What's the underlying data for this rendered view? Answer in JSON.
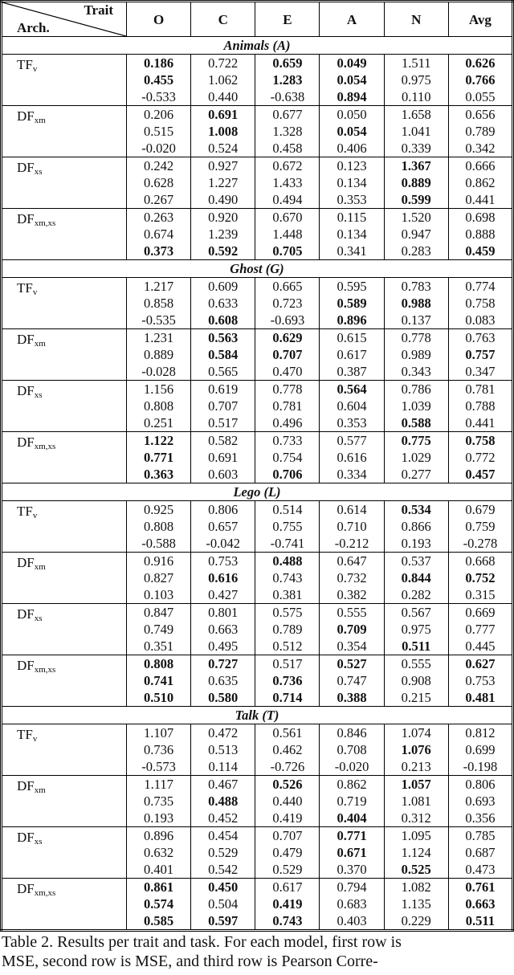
{
  "header": {
    "corner_top": "Trait",
    "corner_bottom": "Arch.",
    "columns": [
      "O",
      "C",
      "E",
      "A",
      "N",
      "Avg"
    ]
  },
  "sections": [
    {
      "title": "Animals (A)",
      "models": [
        {
          "arch": "TF",
          "sub": "v",
          "rows": [
            {
              "values": [
                "0.186",
                "0.722",
                "0.659",
                "0.049",
                "1.511",
                "0.626"
              ],
              "bold": [
                0,
                2,
                3,
                5
              ]
            },
            {
              "values": [
                "0.455",
                "1.062",
                "1.283",
                "0.054",
                "0.975",
                "0.766"
              ],
              "bold": [
                0,
                2,
                3,
                5
              ]
            },
            {
              "values": [
                "-0.533",
                "0.440",
                "-0.638",
                "0.894",
                "0.110",
                "0.055"
              ],
              "bold": [
                3
              ]
            }
          ]
        },
        {
          "arch": "DF",
          "sub": "xm",
          "rows": [
            {
              "values": [
                "0.206",
                "0.691",
                "0.677",
                "0.050",
                "1.658",
                "0.656"
              ],
              "bold": [
                1
              ]
            },
            {
              "values": [
                "0.515",
                "1.008",
                "1.328",
                "0.054",
                "1.041",
                "0.789"
              ],
              "bold": [
                1,
                3
              ]
            },
            {
              "values": [
                "-0.020",
                "0.524",
                "0.458",
                "0.406",
                "0.339",
                "0.342"
              ],
              "bold": []
            }
          ]
        },
        {
          "arch": "DF",
          "sub": "xs",
          "rows": [
            {
              "values": [
                "0.242",
                "0.927",
                "0.672",
                "0.123",
                "1.367",
                "0.666"
              ],
              "bold": [
                4
              ]
            },
            {
              "values": [
                "0.628",
                "1.227",
                "1.433",
                "0.134",
                "0.889",
                "0.862"
              ],
              "bold": [
                4
              ]
            },
            {
              "values": [
                "0.267",
                "0.490",
                "0.494",
                "0.353",
                "0.599",
                "0.441"
              ],
              "bold": [
                4
              ]
            }
          ]
        },
        {
          "arch": "DF",
          "sub": "xm,xs",
          "rows": [
            {
              "values": [
                "0.263",
                "0.920",
                "0.670",
                "0.115",
                "1.520",
                "0.698"
              ],
              "bold": []
            },
            {
              "values": [
                "0.674",
                "1.239",
                "1.448",
                "0.134",
                "0.947",
                "0.888"
              ],
              "bold": []
            },
            {
              "values": [
                "0.373",
                "0.592",
                "0.705",
                "0.341",
                "0.283",
                "0.459"
              ],
              "bold": [
                0,
                1,
                2,
                5
              ]
            }
          ]
        }
      ]
    },
    {
      "title": "Ghost (G)",
      "models": [
        {
          "arch": "TF",
          "sub": "v",
          "rows": [
            {
              "values": [
                "1.217",
                "0.609",
                "0.665",
                "0.595",
                "0.783",
                "0.774"
              ],
              "bold": []
            },
            {
              "values": [
                "0.858",
                "0.633",
                "0.723",
                "0.589",
                "0.988",
                "0.758"
              ],
              "bold": [
                3,
                4
              ]
            },
            {
              "values": [
                "-0.535",
                "0.608",
                "-0.693",
                "0.896",
                "0.137",
                "0.083"
              ],
              "bold": [
                1,
                3
              ]
            }
          ]
        },
        {
          "arch": "DF",
          "sub": "xm",
          "rows": [
            {
              "values": [
                "1.231",
                "0.563",
                "0.629",
                "0.615",
                "0.778",
                "0.763"
              ],
              "bold": [
                1,
                2
              ]
            },
            {
              "values": [
                "0.889",
                "0.584",
                "0.707",
                "0.617",
                "0.989",
                "0.757"
              ],
              "bold": [
                1,
                2,
                5
              ]
            },
            {
              "values": [
                "-0.028",
                "0.565",
                "0.470",
                "0.387",
                "0.343",
                "0.347"
              ],
              "bold": []
            }
          ]
        },
        {
          "arch": "DF",
          "sub": "xs",
          "rows": [
            {
              "values": [
                "1.156",
                "0.619",
                "0.778",
                "0.564",
                "0.786",
                "0.781"
              ],
              "bold": [
                3
              ]
            },
            {
              "values": [
                "0.808",
                "0.707",
                "0.781",
                "0.604",
                "1.039",
                "0.788"
              ],
              "bold": []
            },
            {
              "values": [
                "0.251",
                "0.517",
                "0.496",
                "0.353",
                "0.588",
                "0.441"
              ],
              "bold": [
                4
              ]
            }
          ]
        },
        {
          "arch": "DF",
          "sub": "xm,xs",
          "rows": [
            {
              "values": [
                "1.122",
                "0.582",
                "0.733",
                "0.577",
                "0.775",
                "0.758"
              ],
              "bold": [
                0,
                4,
                5
              ]
            },
            {
              "values": [
                "0.771",
                "0.691",
                "0.754",
                "0.616",
                "1.029",
                "0.772"
              ],
              "bold": [
                0
              ]
            },
            {
              "values": [
                "0.363",
                "0.603",
                "0.706",
                "0.334",
                "0.277",
                "0.457"
              ],
              "bold": [
                0,
                2,
                5
              ]
            }
          ]
        }
      ]
    },
    {
      "title": "Lego (L)",
      "models": [
        {
          "arch": "TF",
          "sub": "v",
          "rows": [
            {
              "values": [
                "0.925",
                "0.806",
                "0.514",
                "0.614",
                "0.534",
                "0.679"
              ],
              "bold": [
                4
              ]
            },
            {
              "values": [
                "0.808",
                "0.657",
                "0.755",
                "0.710",
                "0.866",
                "0.759"
              ],
              "bold": []
            },
            {
              "values": [
                "-0.588",
                "-0.042",
                "-0.741",
                "-0.212",
                "0.193",
                "-0.278"
              ],
              "bold": []
            }
          ]
        },
        {
          "arch": "DF",
          "sub": "xm",
          "rows": [
            {
              "values": [
                "0.916",
                "0.753",
                "0.488",
                "0.647",
                "0.537",
                "0.668"
              ],
              "bold": [
                2
              ]
            },
            {
              "values": [
                "0.827",
                "0.616",
                "0.743",
                "0.732",
                "0.844",
                "0.752"
              ],
              "bold": [
                1,
                4,
                5
              ]
            },
            {
              "values": [
                "0.103",
                "0.427",
                "0.381",
                "0.382",
                "0.282",
                "0.315"
              ],
              "bold": []
            }
          ]
        },
        {
          "arch": "DF",
          "sub": "xs",
          "rows": [
            {
              "values": [
                "0.847",
                "0.801",
                "0.575",
                "0.555",
                "0.567",
                "0.669"
              ],
              "bold": []
            },
            {
              "values": [
                "0.749",
                "0.663",
                "0.789",
                "0.709",
                "0.975",
                "0.777"
              ],
              "bold": [
                3
              ]
            },
            {
              "values": [
                "0.351",
                "0.495",
                "0.512",
                "0.354",
                "0.511",
                "0.445"
              ],
              "bold": [
                4
              ]
            }
          ]
        },
        {
          "arch": "DF",
          "sub": "xm,xs",
          "rows": [
            {
              "values": [
                "0.808",
                "0.727",
                "0.517",
                "0.527",
                "0.555",
                "0.627"
              ],
              "bold": [
                0,
                1,
                3,
                5
              ]
            },
            {
              "values": [
                "0.741",
                "0.635",
                "0.736",
                "0.747",
                "0.908",
                "0.753"
              ],
              "bold": [
                0,
                2
              ]
            },
            {
              "values": [
                "0.510",
                "0.580",
                "0.714",
                "0.388",
                "0.215",
                "0.481"
              ],
              "bold": [
                0,
                1,
                2,
                3,
                5
              ]
            }
          ]
        }
      ]
    },
    {
      "title": "Talk (T)",
      "models": [
        {
          "arch": "TF",
          "sub": "v",
          "rows": [
            {
              "values": [
                "1.107",
                "0.472",
                "0.561",
                "0.846",
                "1.074",
                "0.812"
              ],
              "bold": []
            },
            {
              "values": [
                "0.736",
                "0.513",
                "0.462",
                "0.708",
                "1.076",
                "0.699"
              ],
              "bold": [
                4
              ]
            },
            {
              "values": [
                "-0.573",
                "0.114",
                "-0.726",
                "-0.020",
                "0.213",
                "-0.198"
              ],
              "bold": []
            }
          ]
        },
        {
          "arch": "DF",
          "sub": "xm",
          "rows": [
            {
              "values": [
                "1.117",
                "0.467",
                "0.526",
                "0.862",
                "1.057",
                "0.806"
              ],
              "bold": [
                2,
                4
              ]
            },
            {
              "values": [
                "0.735",
                "0.488",
                "0.440",
                "0.719",
                "1.081",
                "0.693"
              ],
              "bold": [
                1
              ]
            },
            {
              "values": [
                "0.193",
                "0.452",
                "0.419",
                "0.404",
                "0.312",
                "0.356"
              ],
              "bold": [
                3
              ]
            }
          ]
        },
        {
          "arch": "DF",
          "sub": "xs",
          "rows": [
            {
              "values": [
                "0.896",
                "0.454",
                "0.707",
                "0.771",
                "1.095",
                "0.785"
              ],
              "bold": [
                3
              ]
            },
            {
              "values": [
                "0.632",
                "0.529",
                "0.479",
                "0.671",
                "1.124",
                "0.687"
              ],
              "bold": [
                3
              ]
            },
            {
              "values": [
                "0.401",
                "0.542",
                "0.529",
                "0.370",
                "0.525",
                "0.473"
              ],
              "bold": [
                4
              ]
            }
          ]
        },
        {
          "arch": "DF",
          "sub": "xm,xs",
          "rows": [
            {
              "values": [
                "0.861",
                "0.450",
                "0.617",
                "0.794",
                "1.082",
                "0.761"
              ],
              "bold": [
                0,
                1,
                5
              ]
            },
            {
              "values": [
                "0.574",
                "0.504",
                "0.419",
                "0.683",
                "1.135",
                "0.663"
              ],
              "bold": [
                0,
                2,
                5
              ]
            },
            {
              "values": [
                "0.585",
                "0.597",
                "0.743",
                "0.403",
                "0.229",
                "0.511"
              ],
              "bold": [
                0,
                1,
                2,
                5
              ]
            }
          ]
        }
      ]
    }
  ],
  "caption": {
    "line1": "Table 2. Results per trait and task.  For each model, first row is",
    "line2": "MSE, second row is MSE, and third row is Pearson Corre-"
  }
}
